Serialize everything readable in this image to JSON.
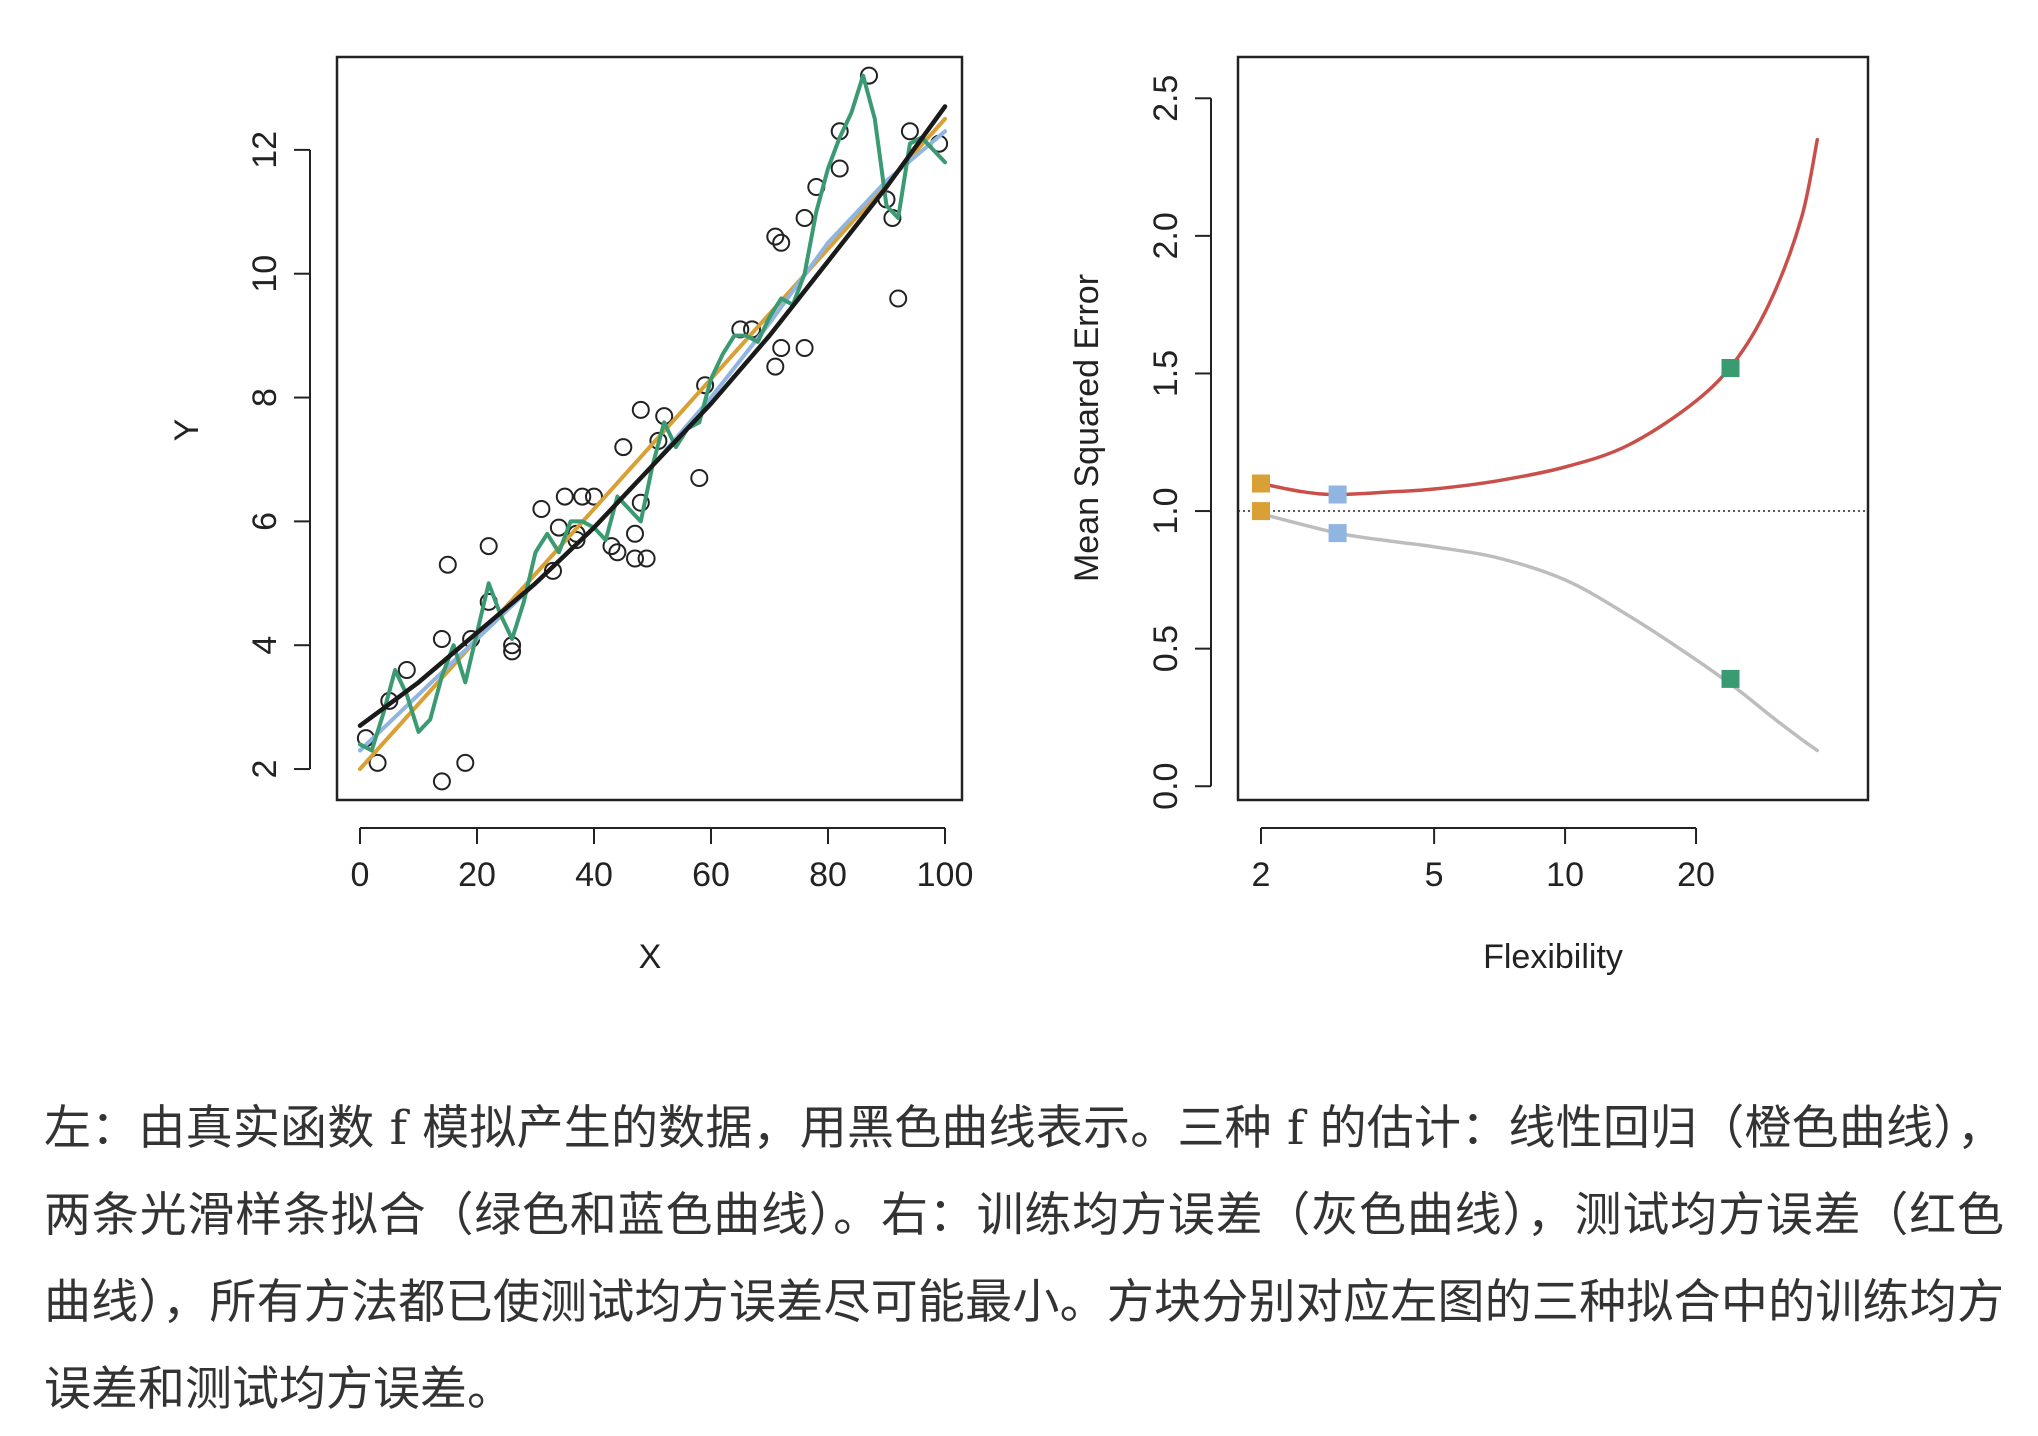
{
  "chart_data": [
    {
      "type": "scatter",
      "panel": "left",
      "xlabel": "X",
      "ylabel": "Y",
      "xlim": [
        0,
        100
      ],
      "ylim": [
        1.5,
        13.5
      ],
      "x_ticks": [
        0,
        20,
        40,
        60,
        80,
        100
      ],
      "y_ticks": [
        2,
        4,
        6,
        8,
        10,
        12
      ],
      "points": [
        [
          1,
          2.5
        ],
        [
          3,
          2.1
        ],
        [
          5,
          3.1
        ],
        [
          8,
          3.6
        ],
        [
          14,
          1.8
        ],
        [
          14,
          4.1
        ],
        [
          15,
          5.3
        ],
        [
          18,
          2.1
        ],
        [
          19,
          4.1
        ],
        [
          22,
          5.6
        ],
        [
          22,
          4.7
        ],
        [
          26,
          4.0
        ],
        [
          26,
          3.9
        ],
        [
          31,
          6.2
        ],
        [
          33,
          5.2
        ],
        [
          34,
          5.9
        ],
        [
          35,
          6.4
        ],
        [
          37,
          5.7
        ],
        [
          37,
          5.8
        ],
        [
          38,
          6.4
        ],
        [
          40,
          6.4
        ],
        [
          43,
          5.6
        ],
        [
          44,
          5.5
        ],
        [
          45,
          7.2
        ],
        [
          47,
          5.4
        ],
        [
          47,
          5.8
        ],
        [
          48,
          7.8
        ],
        [
          48,
          6.3
        ],
        [
          49,
          5.4
        ],
        [
          51,
          7.3
        ],
        [
          52,
          7.7
        ],
        [
          58,
          6.7
        ],
        [
          59,
          8.2
        ],
        [
          65,
          9.1
        ],
        [
          67,
          9.1
        ],
        [
          71,
          8.5
        ],
        [
          71,
          10.6
        ],
        [
          72,
          10.5
        ],
        [
          72,
          8.8
        ],
        [
          76,
          8.8
        ],
        [
          76,
          10.9
        ],
        [
          78,
          11.4
        ],
        [
          82,
          12.3
        ],
        [
          82,
          11.7
        ],
        [
          87,
          13.2
        ],
        [
          90,
          11.2
        ],
        [
          91,
          10.9
        ],
        [
          92,
          9.6
        ],
        [
          94,
          12.3
        ],
        [
          99,
          12.1
        ]
      ],
      "series": [
        {
          "name": "true f",
          "color": "#1a1a1a",
          "x": [
            0,
            10,
            20,
            30,
            40,
            50,
            60,
            70,
            80,
            90,
            100
          ],
          "y": [
            2.7,
            3.4,
            4.2,
            5.0,
            5.9,
            6.9,
            7.9,
            9.0,
            10.2,
            11.4,
            12.7
          ]
        },
        {
          "name": "linear regression",
          "color": "#d9a035",
          "x": [
            0,
            100
          ],
          "y": [
            2.0,
            12.5
          ]
        },
        {
          "name": "smooth spline",
          "color": "#8fb5e0",
          "x": [
            0,
            10,
            20,
            30,
            40,
            50,
            60,
            70,
            80,
            90,
            100
          ],
          "y": [
            2.3,
            3.2,
            4.1,
            5.0,
            5.9,
            6.9,
            8.0,
            9.2,
            10.5,
            11.5,
            12.3
          ]
        },
        {
          "name": "rough spline",
          "color": "#3a9a72",
          "x": [
            0,
            2,
            4,
            6,
            8,
            10,
            12,
            14,
            16,
            18,
            20,
            22,
            24,
            26,
            28,
            30,
            32,
            34,
            36,
            38,
            40,
            42,
            44,
            46,
            48,
            50,
            52,
            54,
            56,
            58,
            60,
            62,
            64,
            66,
            68,
            70,
            72,
            74,
            76,
            78,
            80,
            82,
            84,
            86,
            88,
            90,
            92,
            94,
            96,
            98,
            100
          ],
          "y": [
            2.4,
            2.3,
            2.9,
            3.6,
            3.2,
            2.6,
            2.8,
            3.5,
            4.0,
            3.4,
            4.2,
            5.0,
            4.5,
            4.1,
            4.7,
            5.5,
            5.8,
            5.5,
            6.0,
            6.0,
            5.9,
            5.7,
            6.4,
            6.2,
            6.0,
            6.9,
            7.6,
            7.2,
            7.5,
            7.6,
            8.3,
            8.7,
            9.0,
            9.0,
            8.9,
            9.3,
            9.6,
            9.5,
            10.0,
            11.0,
            11.7,
            12.2,
            12.6,
            13.2,
            12.5,
            11.1,
            10.9,
            12.1,
            12.2,
            12.0,
            11.8
          ]
        }
      ]
    },
    {
      "type": "line",
      "panel": "right",
      "xlabel": "Flexibility",
      "ylabel": "Mean Squared Error",
      "x_scale": "log",
      "xlim": [
        2,
        44
      ],
      "ylim": [
        -0.05,
        2.65
      ],
      "x_ticks": [
        2,
        5,
        10,
        20
      ],
      "y_ticks": [
        "0.0",
        "0.5",
        "1.0",
        "1.5",
        "2.0",
        "2.5"
      ],
      "reference_line": {
        "y": 1.0,
        "style": "dotted"
      },
      "series": [
        {
          "name": "test MSE",
          "color": "#c9504a",
          "x": [
            2,
            2.5,
            3,
            4,
            5,
            7,
            10,
            14,
            20,
            25,
            30,
            35,
            38
          ],
          "y": [
            1.1,
            1.07,
            1.06,
            1.07,
            1.08,
            1.11,
            1.16,
            1.24,
            1.4,
            1.56,
            1.78,
            2.07,
            2.35
          ]
        },
        {
          "name": "training MSE",
          "color": "#bdbdbd",
          "x": [
            2,
            3,
            4,
            5,
            7,
            10,
            14,
            20,
            25,
            30,
            35,
            38
          ],
          "y": [
            0.99,
            0.92,
            0.89,
            0.87,
            0.83,
            0.75,
            0.62,
            0.46,
            0.35,
            0.25,
            0.17,
            0.13
          ]
        }
      ],
      "markers": [
        {
          "name": "linear-test",
          "x": 2,
          "y": 1.1,
          "color": "#d9a035"
        },
        {
          "name": "linear-train",
          "x": 2,
          "y": 1.0,
          "color": "#d9a035"
        },
        {
          "name": "smooth-test",
          "x": 3,
          "y": 1.06,
          "color": "#8fb5e0"
        },
        {
          "name": "smooth-train",
          "x": 3,
          "y": 0.92,
          "color": "#8fb5e0"
        },
        {
          "name": "rough-test",
          "x": 24,
          "y": 1.52,
          "color": "#3a9a72"
        },
        {
          "name": "rough-train",
          "x": 24,
          "y": 0.39,
          "color": "#3a9a72"
        }
      ]
    }
  ],
  "caption": "左：由真实函数 f 模拟产生的数据，用黑色曲线表示。三种 f 的估计：线性回归（橙色曲线），两条光滑样条拟合（绿色和蓝色曲线）。右：训练均方误差（灰色曲线），测试均方误差（红色曲线），所有方法都已使测试均方误差尽可能最小。方块分别对应左图的三种拟合中的训练均方误差和测试均方误差。"
}
